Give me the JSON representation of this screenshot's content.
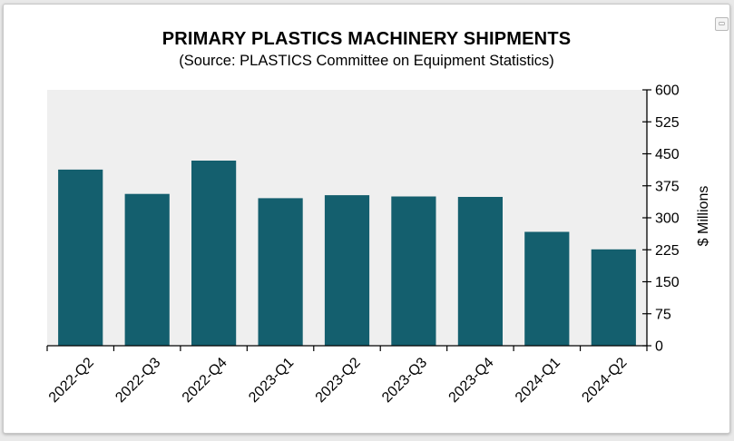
{
  "window": {
    "corner_icon": "chart-view-icon"
  },
  "chart_data": {
    "type": "bar",
    "title": "PRIMARY PLASTICS MACHINERY SHIPMENTS",
    "subtitle": "(Source: PLASTICS Committee on Equipment Statistics)",
    "xlabel": "",
    "ylabel": "$ Millions",
    "categories": [
      "2022-Q2",
      "2022-Q3",
      "2022-Q4",
      "2023-Q1",
      "2023-Q2",
      "2023-Q3",
      "2023-Q4",
      "2024-Q1",
      "2024-Q2"
    ],
    "values": [
      413,
      356,
      434,
      346,
      353,
      350,
      349,
      267,
      226
    ],
    "ylim": [
      0,
      600
    ],
    "yticks": [
      0,
      75,
      150,
      225,
      300,
      375,
      450,
      525,
      600
    ],
    "y_axis_side": "right",
    "grid": false,
    "legend": "none",
    "colors": {
      "bar": "#145f6e",
      "plot_background": "#efefef"
    }
  }
}
